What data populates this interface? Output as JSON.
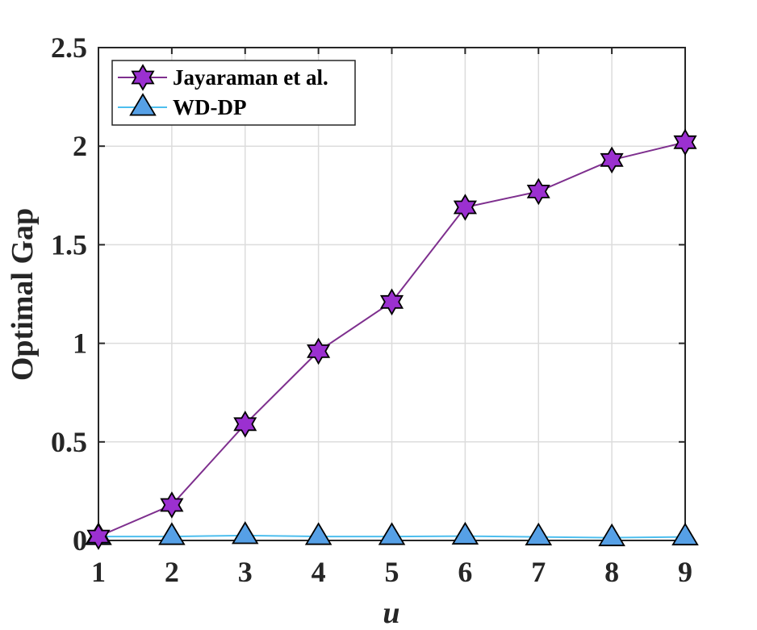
{
  "chart_data": {
    "type": "line",
    "xlabel": "u",
    "ylabel": "Optimal Gap",
    "xlim": [
      1,
      9
    ],
    "ylim": [
      0,
      2.5
    ],
    "x_ticks": [
      "1",
      "2",
      "3",
      "4",
      "5",
      "6",
      "7",
      "8",
      "9"
    ],
    "y_ticks": [
      "0",
      "0.5",
      "1",
      "1.5",
      "2",
      "2.5"
    ],
    "grid": true,
    "legend_position": "top-left",
    "x": [
      1,
      2,
      3,
      4,
      5,
      6,
      7,
      8,
      9
    ],
    "series": [
      {
        "name": "Jayaraman et al.",
        "color": "#7e2f8e",
        "marker_fill": "#9b30d0",
        "marker": "hexagram",
        "values": [
          0.02,
          0.18,
          0.59,
          0.96,
          1.21,
          1.69,
          1.77,
          1.93,
          2.02
        ]
      },
      {
        "name": "WD-DP",
        "color": "#4dbeee",
        "marker_fill": "#56a0e6",
        "marker": "triangle",
        "values": [
          0.02,
          0.02,
          0.025,
          0.02,
          0.02,
          0.022,
          0.018,
          0.014,
          0.018
        ]
      }
    ]
  }
}
